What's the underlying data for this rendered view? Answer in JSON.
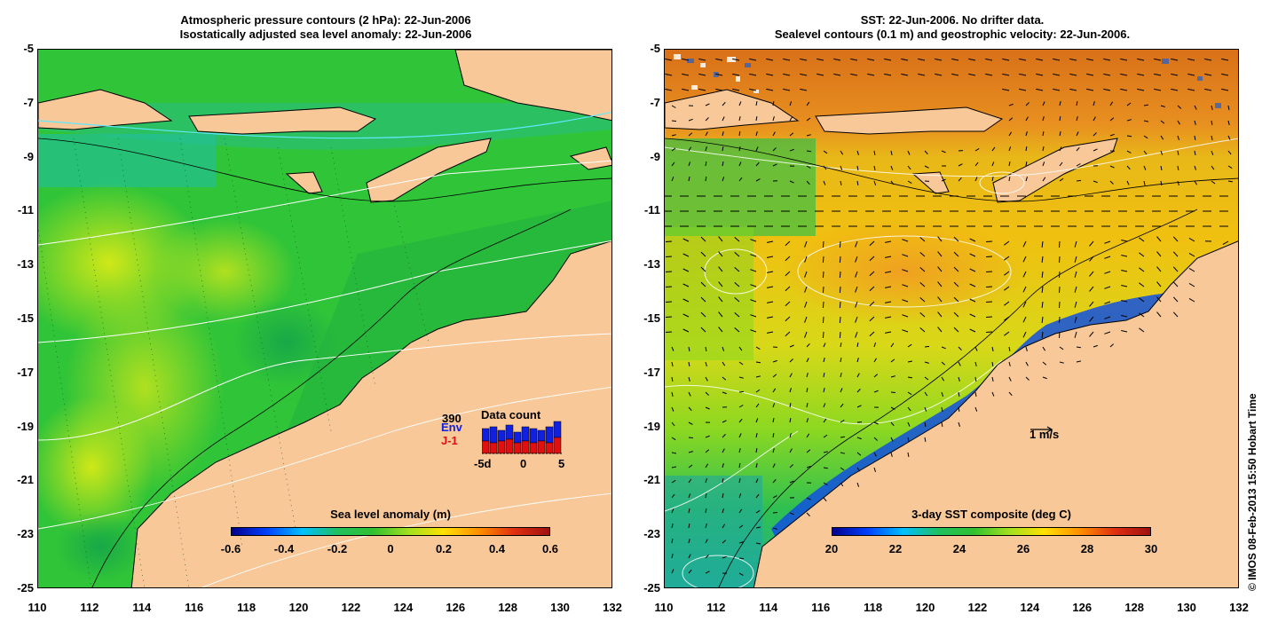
{
  "left_panel": {
    "title_line1": "Atmospheric pressure contours (2 hPa): 22-Jun-2006",
    "title_line2": "Isostatically adjusted sea level anomaly: 22-Jun-2006",
    "colorbar_title": "Sea level anomaly (m)",
    "colorbar_ticks": [
      "-0.6",
      "-0.4",
      "-0.2",
      "0",
      "0.2",
      "0.4",
      "0.6"
    ],
    "inset": {
      "title": "Data count",
      "count": "390",
      "series1": "Env",
      "series2": "J-1",
      "xticks": [
        "-5d",
        "0",
        "5"
      ],
      "series1_color": "#1020e0",
      "series2_color": "#e01010"
    }
  },
  "right_panel": {
    "title_line1": "SST: 22-Jun-2006. No drifter data.",
    "title_line2": "Sealevel contours (0.1 m) and geostrophic velocity: 22-Jun-2006.",
    "colorbar_title": "3-day SST composite (deg C)",
    "colorbar_ticks": [
      "20",
      "22",
      "24",
      "26",
      "28",
      "30"
    ],
    "velocity_scale": "1 m/s"
  },
  "axes": {
    "y_ticks": [
      "-5",
      "-7",
      "-9",
      "-11",
      "-13",
      "-15",
      "-17",
      "-19",
      "-21",
      "-23",
      "-25"
    ],
    "x_ticks": [
      "110",
      "112",
      "114",
      "116",
      "118",
      "120",
      "122",
      "124",
      "126",
      "128",
      "130",
      "132"
    ]
  },
  "copyright": "© IMOS 08-Feb-2013 15:50 Hobart Time",
  "colors": {
    "land": "#f8c898",
    "ocean_green": "#2ec83a",
    "ocean_light": "#8ee020",
    "ocean_teal": "#20c0a0",
    "sst_orange": "#e88a1a",
    "sst_yellow": "#f0d010",
    "sst_blue": "#1060e0"
  }
}
